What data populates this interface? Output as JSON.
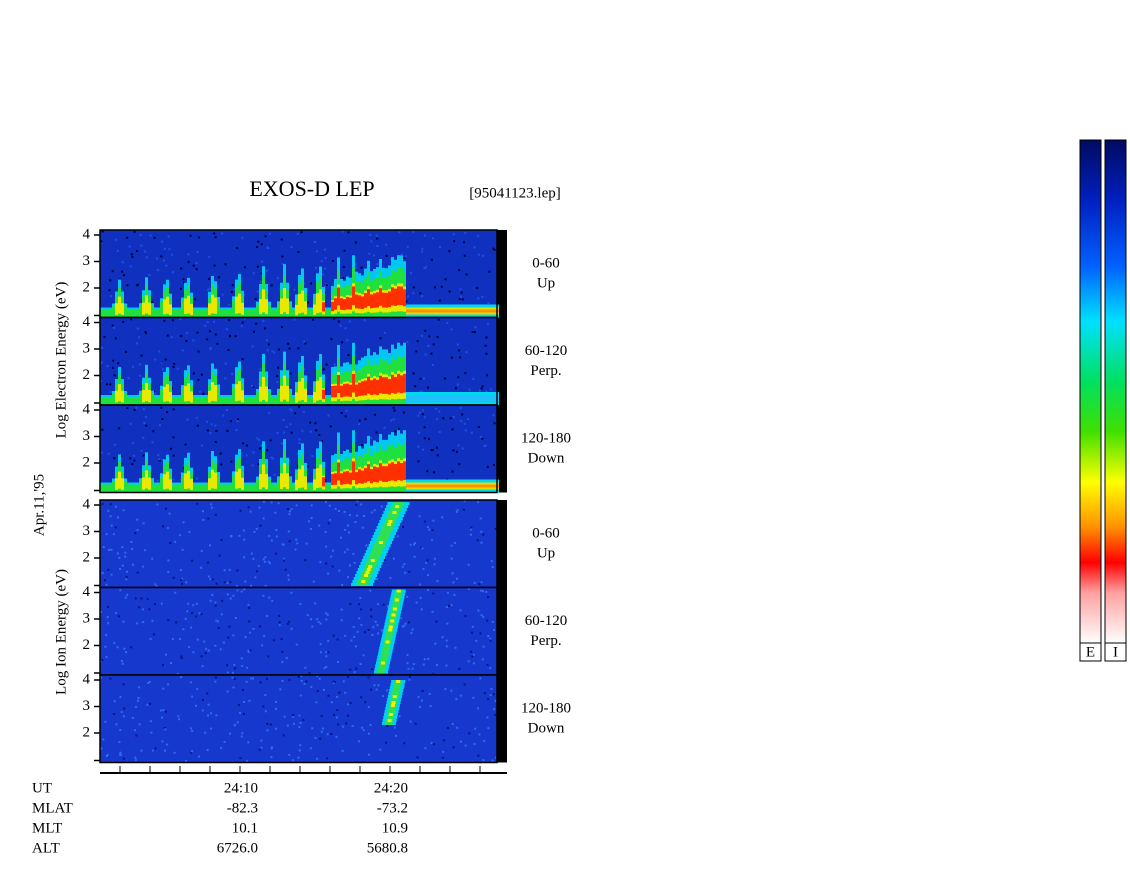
{
  "header": {
    "title": "EXOS-D LEP",
    "file": "[95041123.lep]"
  },
  "date": "Apr.11,'95",
  "electron": {
    "axis_label": "Log Electron Energy (eV)",
    "panels": [
      {
        "pitch": "0-60",
        "direction": "Up"
      },
      {
        "pitch": "60-120",
        "direction": "Perp."
      },
      {
        "pitch": "120-180",
        "direction": "Down"
      }
    ]
  },
  "ion": {
    "axis_label": "Log Ion Energy (eV)",
    "panels": [
      {
        "pitch": "0-60",
        "direction": "Up"
      },
      {
        "pitch": "60-120",
        "direction": "Perp."
      },
      {
        "pitch": "120-180",
        "direction": "Down"
      }
    ]
  },
  "yticks": [
    2,
    3,
    4
  ],
  "ephemeris": {
    "labels": [
      "UT",
      "MLAT",
      "MLT",
      "ALT"
    ],
    "columns": [
      [
        "24:10",
        "-82.3",
        "10.1",
        "6726.0"
      ],
      [
        "24:20",
        "-73.2",
        "10.9",
        "5680.8"
      ]
    ]
  },
  "colorbar": {
    "labels": [
      "E",
      "I"
    ]
  }
}
